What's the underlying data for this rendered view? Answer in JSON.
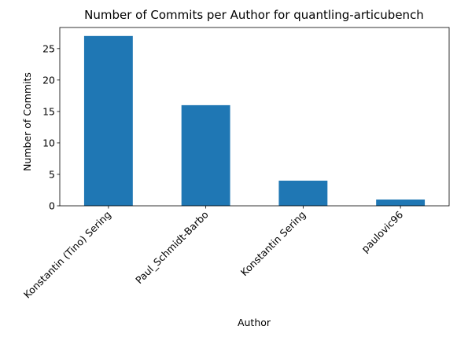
{
  "chart_data": {
    "type": "bar",
    "title": "Number of Commits per Author for quantling-articubench",
    "xlabel": "Author",
    "ylabel": "Number of Commits",
    "categories": [
      "Konstantin (Tino) Sering",
      "Paul_Schmidt-Barbo",
      "Konstantin Sering",
      "paulovic96"
    ],
    "values": [
      27,
      16,
      4,
      1
    ],
    "ylim": [
      0,
      28.35
    ],
    "yticks": [
      0,
      5,
      10,
      15,
      20,
      25
    ],
    "bar_color": "#1f77b4",
    "grid": false,
    "legend": "none"
  }
}
